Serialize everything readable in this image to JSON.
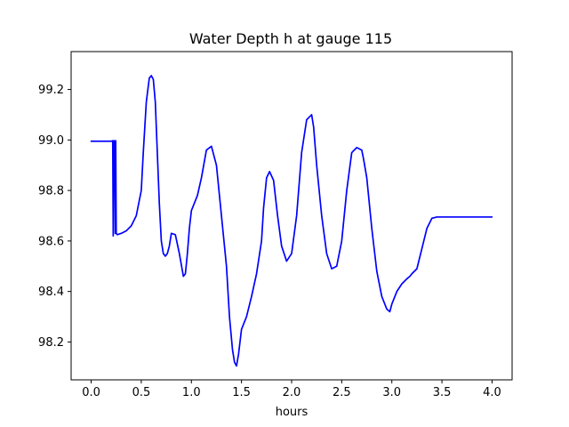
{
  "chart_data": {
    "type": "line",
    "title": "Water Depth h at gauge 115",
    "xlabel": "hours",
    "ylabel": "",
    "xlim": [
      -0.2,
      4.2
    ],
    "ylim": [
      98.05,
      99.35
    ],
    "x_ticks": [
      0.0,
      0.5,
      1.0,
      1.5,
      2.0,
      2.5,
      3.0,
      3.5,
      4.0
    ],
    "x_tick_labels": [
      "0.0",
      "0.5",
      "1.0",
      "1.5",
      "2.0",
      "2.5",
      "3.0",
      "3.5",
      "4.0"
    ],
    "y_ticks": [
      98.2,
      98.4,
      98.6,
      98.8,
      99.0,
      99.2
    ],
    "y_tick_labels": [
      "98.2",
      "98.4",
      "98.6",
      "98.8",
      "99.0",
      "99.2"
    ],
    "grid": false,
    "legend": "none",
    "series": [
      {
        "color": "#0000ff",
        "x": [
          0.0,
          0.1,
          0.2,
          0.215,
          0.22,
          0.225,
          0.235,
          0.24,
          0.245,
          0.25,
          0.26,
          0.3,
          0.35,
          0.4,
          0.45,
          0.5,
          0.52,
          0.55,
          0.58,
          0.6,
          0.62,
          0.64,
          0.66,
          0.68,
          0.7,
          0.72,
          0.74,
          0.76,
          0.78,
          0.8,
          0.84,
          0.88,
          0.92,
          0.94,
          0.96,
          0.98,
          1.0,
          1.03,
          1.06,
          1.1,
          1.15,
          1.2,
          1.25,
          1.3,
          1.35,
          1.38,
          1.41,
          1.43,
          1.45,
          1.47,
          1.5,
          1.55,
          1.6,
          1.65,
          1.7,
          1.72,
          1.75,
          1.78,
          1.82,
          1.86,
          1.9,
          1.95,
          2.0,
          2.05,
          2.1,
          2.15,
          2.2,
          2.22,
          2.25,
          2.3,
          2.35,
          2.4,
          2.45,
          2.5,
          2.55,
          2.6,
          2.65,
          2.7,
          2.72,
          2.75,
          2.8,
          2.85,
          2.9,
          2.95,
          2.98,
          3.0,
          3.05,
          3.1,
          3.15,
          3.18,
          3.2,
          3.25,
          3.3,
          3.35,
          3.4,
          3.45,
          3.5,
          3.55,
          3.6,
          3.65,
          3.7,
          3.75,
          3.8,
          3.85,
          3.9,
          3.95,
          4.0
        ],
        "y": [
          98.995,
          98.995,
          98.995,
          98.997,
          98.62,
          98.997,
          98.997,
          98.63,
          98.997,
          98.63,
          98.625,
          98.63,
          98.64,
          98.66,
          98.7,
          98.8,
          98.95,
          99.15,
          99.245,
          99.255,
          99.24,
          99.15,
          98.95,
          98.75,
          98.6,
          98.55,
          98.54,
          98.55,
          98.58,
          98.63,
          98.625,
          98.55,
          98.46,
          98.47,
          98.55,
          98.65,
          98.72,
          98.75,
          98.78,
          98.85,
          98.96,
          98.975,
          98.9,
          98.7,
          98.5,
          98.3,
          98.17,
          98.12,
          98.105,
          98.15,
          98.25,
          98.3,
          98.38,
          98.47,
          98.6,
          98.73,
          98.85,
          98.875,
          98.84,
          98.7,
          98.58,
          98.52,
          98.55,
          98.7,
          98.95,
          99.08,
          99.1,
          99.05,
          98.9,
          98.7,
          98.55,
          98.49,
          98.5,
          98.6,
          98.8,
          98.95,
          98.97,
          98.96,
          98.92,
          98.85,
          98.65,
          98.48,
          98.38,
          98.33,
          98.32,
          98.35,
          98.4,
          98.43,
          98.45,
          98.46,
          98.47,
          98.49,
          98.57,
          98.65,
          98.69,
          98.695,
          98.695,
          98.695,
          98.695,
          98.695,
          98.695,
          98.695,
          98.695,
          98.695,
          98.695,
          98.695,
          98.695
        ]
      }
    ]
  }
}
